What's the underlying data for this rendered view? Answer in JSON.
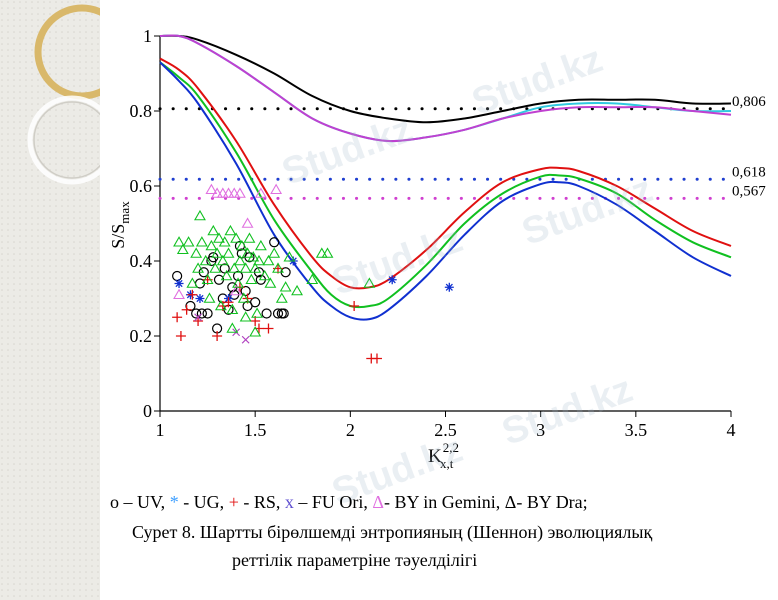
{
  "watermark": "Stud.kz",
  "chart_data": {
    "type": "line",
    "ylabel_main": "S/S",
    "ylabel_sub": "max",
    "xlabel_main": "K",
    "xlabel_sup": "2,2",
    "xlabel_sub": "x,t",
    "xlim": [
      1,
      4
    ],
    "ylim": [
      0,
      1
    ],
    "xticks": [
      1,
      1.5,
      2,
      2.5,
      3,
      3.5,
      4
    ],
    "xtick_labels": [
      "1",
      "1.5",
      "2",
      "2.5",
      "3",
      "3.5",
      "4"
    ],
    "yticks": [
      0,
      0.2,
      0.4,
      0.6,
      0.8,
      1
    ],
    "ytick_labels": [
      "0",
      "0.2",
      "0.4",
      "0.6",
      "0.8",
      "1"
    ],
    "reference_lines": [
      {
        "y": 0.806,
        "label": "0,806",
        "color": "#000000"
      },
      {
        "y": 0.618,
        "label": "0,618",
        "color": "#1f3fd0"
      },
      {
        "y": 0.567,
        "label": "0,567",
        "color": "#d040d0"
      }
    ],
    "series": [
      {
        "name": "upper-black",
        "color": "#000000",
        "x": [
          1,
          1.1,
          1.2,
          1.4,
          1.6,
          1.8,
          2.0,
          2.2,
          2.4,
          2.6,
          2.8,
          3.0,
          3.2,
          3.4,
          3.6,
          3.8,
          4.0
        ],
        "y": [
          1.0,
          1.0,
          0.99,
          0.95,
          0.9,
          0.84,
          0.8,
          0.78,
          0.77,
          0.78,
          0.8,
          0.82,
          0.83,
          0.83,
          0.83,
          0.82,
          0.82
        ]
      },
      {
        "name": "upper-cyan",
        "color": "#30c8e0",
        "x": [
          1,
          1.1,
          1.2,
          1.4,
          1.6,
          1.8,
          2.0,
          2.2,
          2.4,
          2.6,
          2.8,
          3.0,
          3.2,
          3.4,
          3.6,
          3.8,
          4.0
        ],
        "y": [
          1.0,
          1.0,
          0.98,
          0.92,
          0.85,
          0.78,
          0.74,
          0.72,
          0.73,
          0.75,
          0.78,
          0.81,
          0.82,
          0.82,
          0.81,
          0.8,
          0.8
        ]
      },
      {
        "name": "upper-magenta",
        "color": "#c040d0",
        "x": [
          1,
          1.1,
          1.2,
          1.4,
          1.6,
          1.8,
          2.0,
          2.2,
          2.4,
          2.6,
          2.8,
          3.0,
          3.2,
          3.4,
          3.6,
          3.8,
          4.0
        ],
        "y": [
          1.0,
          1.0,
          0.98,
          0.92,
          0.85,
          0.78,
          0.74,
          0.72,
          0.73,
          0.75,
          0.78,
          0.8,
          0.81,
          0.81,
          0.81,
          0.8,
          0.79
        ]
      },
      {
        "name": "red",
        "color": "#e01010",
        "x": [
          1,
          1.1,
          1.2,
          1.4,
          1.6,
          1.8,
          1.9,
          2.0,
          2.1,
          2.2,
          2.4,
          2.6,
          2.8,
          3.0,
          3.1,
          3.2,
          3.4,
          3.6,
          3.8,
          4.0
        ],
        "y": [
          0.94,
          0.91,
          0.86,
          0.72,
          0.55,
          0.41,
          0.36,
          0.33,
          0.33,
          0.35,
          0.43,
          0.53,
          0.61,
          0.645,
          0.648,
          0.64,
          0.6,
          0.54,
          0.48,
          0.44
        ]
      },
      {
        "name": "green",
        "color": "#10c020",
        "x": [
          1,
          1.1,
          1.2,
          1.4,
          1.6,
          1.8,
          1.9,
          2.0,
          2.1,
          2.2,
          2.4,
          2.6,
          2.8,
          3.0,
          3.1,
          3.2,
          3.4,
          3.6,
          3.8,
          4.0
        ],
        "y": [
          0.93,
          0.89,
          0.84,
          0.69,
          0.51,
          0.37,
          0.31,
          0.28,
          0.28,
          0.3,
          0.39,
          0.5,
          0.58,
          0.625,
          0.628,
          0.62,
          0.58,
          0.51,
          0.45,
          0.41
        ]
      },
      {
        "name": "blue",
        "color": "#1030d0",
        "x": [
          1,
          1.1,
          1.2,
          1.4,
          1.6,
          1.8,
          1.9,
          2.0,
          2.1,
          2.2,
          2.4,
          2.6,
          2.8,
          3.0,
          3.1,
          3.2,
          3.4,
          3.6,
          3.8,
          4.0
        ],
        "y": [
          0.93,
          0.88,
          0.82,
          0.66,
          0.47,
          0.33,
          0.28,
          0.25,
          0.245,
          0.27,
          0.36,
          0.47,
          0.56,
          0.605,
          0.61,
          0.6,
          0.55,
          0.48,
          0.41,
          0.36
        ]
      }
    ],
    "scatter_groups": [
      {
        "name": "UV",
        "marker": "circle",
        "color": "#000000",
        "points": [
          [
            1.09,
            0.36
          ],
          [
            1.16,
            0.28
          ],
          [
            1.19,
            0.26
          ],
          [
            1.21,
            0.34
          ],
          [
            1.22,
            0.26
          ],
          [
            1.23,
            0.37
          ],
          [
            1.25,
            0.26
          ],
          [
            1.27,
            0.4
          ],
          [
            1.28,
            0.41
          ],
          [
            1.3,
            0.22
          ],
          [
            1.31,
            0.35
          ],
          [
            1.33,
            0.3
          ],
          [
            1.34,
            0.38
          ],
          [
            1.36,
            0.27
          ],
          [
            1.38,
            0.33
          ],
          [
            1.39,
            0.31
          ],
          [
            1.41,
            0.36
          ],
          [
            1.42,
            0.44
          ],
          [
            1.43,
            0.42
          ],
          [
            1.45,
            0.32
          ],
          [
            1.46,
            0.28
          ],
          [
            1.47,
            0.41
          ],
          [
            1.5,
            0.29
          ],
          [
            1.52,
            0.37
          ],
          [
            1.53,
            0.35
          ],
          [
            1.56,
            0.26
          ],
          [
            1.6,
            0.45
          ],
          [
            1.62,
            0.26
          ],
          [
            1.64,
            0.26
          ],
          [
            1.65,
            0.26
          ],
          [
            1.66,
            0.37
          ]
        ]
      },
      {
        "name": "UG",
        "marker": "asterisk",
        "color": "#1030d0",
        "points": [
          [
            1.1,
            0.34
          ],
          [
            1.16,
            0.31
          ],
          [
            1.21,
            0.3
          ],
          [
            1.36,
            0.3
          ],
          [
            1.7,
            0.4
          ],
          [
            2.22,
            0.35
          ],
          [
            2.52,
            0.33
          ]
        ]
      },
      {
        "name": "RS",
        "marker": "plus",
        "color": "#e01010",
        "points": [
          [
            1.09,
            0.25
          ],
          [
            1.11,
            0.2
          ],
          [
            1.14,
            0.27
          ],
          [
            1.17,
            0.31
          ],
          [
            1.2,
            0.24
          ],
          [
            1.25,
            0.35
          ],
          [
            1.3,
            0.2
          ],
          [
            1.33,
            0.28
          ],
          [
            1.36,
            0.29
          ],
          [
            1.42,
            0.33
          ],
          [
            1.46,
            0.3
          ],
          [
            1.5,
            0.24
          ],
          [
            1.52,
            0.22
          ],
          [
            1.57,
            0.22
          ],
          [
            1.62,
            0.38
          ],
          [
            2.02,
            0.28
          ],
          [
            2.11,
            0.14
          ],
          [
            2.14,
            0.14
          ]
        ]
      },
      {
        "name": "FU Ori",
        "marker": "x",
        "color": "#b040c0",
        "points": [
          [
            1.2,
            0.25
          ],
          [
            1.4,
            0.21
          ],
          [
            1.45,
            0.19
          ]
        ]
      },
      {
        "name": "BY in Gemini",
        "marker": "triangle",
        "color": "#e070e0",
        "points": [
          [
            1.1,
            0.31
          ],
          [
            1.27,
            0.59
          ],
          [
            1.3,
            0.58
          ],
          [
            1.33,
            0.58
          ],
          [
            1.36,
            0.58
          ],
          [
            1.39,
            0.58
          ],
          [
            1.42,
            0.58
          ],
          [
            1.46,
            0.5
          ],
          [
            1.53,
            0.58
          ],
          [
            1.61,
            0.59
          ],
          [
            1.4,
            0.32
          ]
        ]
      },
      {
        "name": "BY Dra",
        "marker": "triangle",
        "color": "#10c020",
        "points": [
          [
            1.1,
            0.45
          ],
          [
            1.12,
            0.43
          ],
          [
            1.15,
            0.45
          ],
          [
            1.17,
            0.34
          ],
          [
            1.19,
            0.42
          ],
          [
            1.2,
            0.38
          ],
          [
            1.21,
            0.52
          ],
          [
            1.22,
            0.45
          ],
          [
            1.24,
            0.4
          ],
          [
            1.25,
            0.35
          ],
          [
            1.26,
            0.3
          ],
          [
            1.27,
            0.44
          ],
          [
            1.28,
            0.48
          ],
          [
            1.29,
            0.38
          ],
          [
            1.3,
            0.42
          ],
          [
            1.31,
            0.46
          ],
          [
            1.32,
            0.28
          ],
          [
            1.33,
            0.4
          ],
          [
            1.34,
            0.45
          ],
          [
            1.35,
            0.36
          ],
          [
            1.36,
            0.42
          ],
          [
            1.37,
            0.48
          ],
          [
            1.38,
            0.27
          ],
          [
            1.39,
            0.38
          ],
          [
            1.4,
            0.46
          ],
          [
            1.41,
            0.34
          ],
          [
            1.42,
            0.4
          ],
          [
            1.43,
            0.44
          ],
          [
            1.44,
            0.3
          ],
          [
            1.45,
            0.38
          ],
          [
            1.46,
            0.42
          ],
          [
            1.47,
            0.46
          ],
          [
            1.48,
            0.35
          ],
          [
            1.49,
            0.41
          ],
          [
            1.5,
            0.38
          ],
          [
            1.51,
            0.26
          ],
          [
            1.52,
            0.4
          ],
          [
            1.53,
            0.44
          ],
          [
            1.55,
            0.36
          ],
          [
            1.57,
            0.4
          ],
          [
            1.58,
            0.34
          ],
          [
            1.6,
            0.42
          ],
          [
            1.62,
            0.38
          ],
          [
            1.64,
            0.3
          ],
          [
            1.66,
            0.33
          ],
          [
            1.68,
            0.41
          ],
          [
            1.72,
            0.32
          ],
          [
            1.8,
            0.35
          ],
          [
            1.85,
            0.42
          ],
          [
            1.88,
            0.42
          ],
          [
            2.1,
            0.34
          ],
          [
            1.45,
            0.25
          ],
          [
            1.38,
            0.22
          ],
          [
            1.5,
            0.21
          ]
        ]
      }
    ]
  },
  "legend": {
    "uv": "o – UV, ",
    "ug_symbol": "*",
    "ug": " - UG, ",
    "rs_symbol": "+",
    "rs": " - RS, ",
    "fu_symbol": "x",
    "fu": " – FU Ori, ",
    "gem_symbol": "Δ",
    "gem": "- BY in Gemini, ",
    "dra": "Δ- BY Dra;"
  },
  "caption": {
    "line1": "Сурет 8. Шартты бірөлшемді энтропияның (Шеннон) эволюциялық",
    "line2": "реттілік параметріне тәуелділігі"
  },
  "colors": {
    "red": "#e01010",
    "blue": "#1030d0",
    "green": "#10c020",
    "magenta": "#e070e0",
    "purple": "#6050d0",
    "ug": "#40a0ff"
  }
}
